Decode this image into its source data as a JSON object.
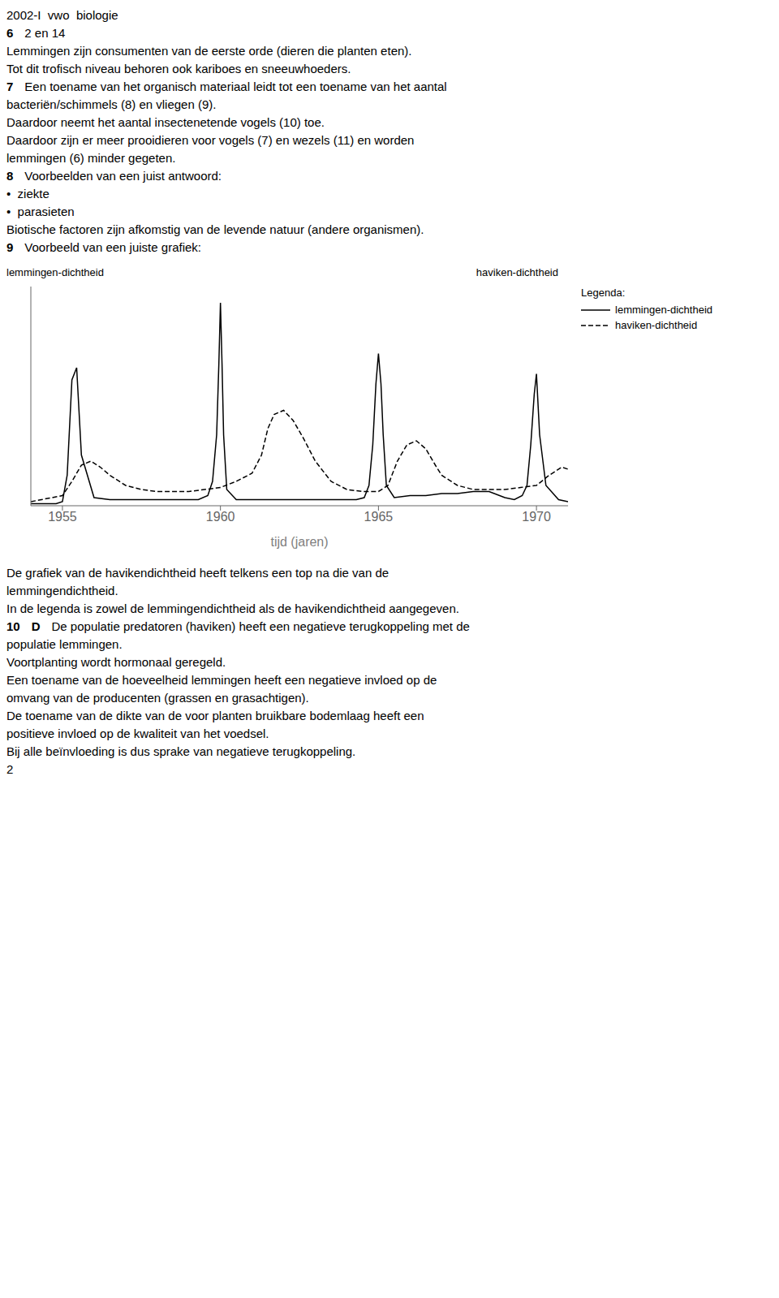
{
  "chart_data": {
    "type": "line",
    "xlabel": "tijd (jaren)",
    "ylabel": "lemmingen-dichtheid",
    "y2label": "haviken-dichtheid",
    "xlim": [
      1954,
      1971
    ],
    "xticks": [
      1955,
      1960,
      1965,
      1970
    ],
    "ylim": [
      0,
      1.08
    ],
    "tick_labels": "x",
    "grid": false,
    "legend": "right",
    "series": [
      {
        "name": "lemmingen-dichtheid",
        "color": "#000000",
        "line_style": "solid",
        "x": [
          1954.0,
          1954.8,
          1955.0,
          1955.15,
          1955.3,
          1955.45,
          1955.6,
          1956.0,
          1956.5,
          1957.0,
          1957.5,
          1958.0,
          1958.5,
          1959.0,
          1959.3,
          1959.6,
          1959.75,
          1959.88,
          1959.95,
          1960.0,
          1960.05,
          1960.1,
          1960.2,
          1960.5,
          1961.0,
          1961.5,
          1962.0,
          1962.5,
          1963.0,
          1963.5,
          1964.0,
          1964.3,
          1964.55,
          1964.7,
          1964.82,
          1964.92,
          1965.0,
          1965.08,
          1965.15,
          1965.25,
          1965.5,
          1966.0,
          1966.5,
          1967.0,
          1967.5,
          1968.0,
          1968.5,
          1969.0,
          1969.3,
          1969.55,
          1969.7,
          1969.82,
          1969.93,
          1970.0,
          1970.1,
          1970.3,
          1970.7,
          1971.0
        ],
        "values": [
          0.01,
          0.01,
          0.02,
          0.15,
          0.62,
          0.68,
          0.25,
          0.04,
          0.03,
          0.03,
          0.03,
          0.03,
          0.03,
          0.03,
          0.03,
          0.05,
          0.12,
          0.35,
          0.7,
          1.0,
          0.7,
          0.35,
          0.08,
          0.03,
          0.03,
          0.03,
          0.03,
          0.03,
          0.03,
          0.03,
          0.03,
          0.03,
          0.04,
          0.1,
          0.3,
          0.6,
          0.75,
          0.6,
          0.35,
          0.1,
          0.04,
          0.05,
          0.05,
          0.06,
          0.06,
          0.07,
          0.07,
          0.04,
          0.03,
          0.05,
          0.1,
          0.3,
          0.55,
          0.65,
          0.35,
          0.1,
          0.03,
          0.02
        ]
      },
      {
        "name": "haviken-dichtheid",
        "color": "#000000",
        "line_style": "dashed",
        "x": [
          1954.0,
          1955.0,
          1955.3,
          1955.6,
          1955.9,
          1956.2,
          1956.5,
          1957.0,
          1957.5,
          1958.0,
          1958.5,
          1959.0,
          1959.5,
          1960.0,
          1960.5,
          1961.0,
          1961.3,
          1961.5,
          1961.7,
          1962.0,
          1962.3,
          1962.6,
          1963.0,
          1963.5,
          1964.0,
          1964.5,
          1965.0,
          1965.3,
          1965.6,
          1965.9,
          1966.2,
          1966.5,
          1966.8,
          1967.0,
          1967.5,
          1968.0,
          1968.5,
          1969.0,
          1969.5,
          1970.0,
          1970.4,
          1970.8,
          1971.0
        ],
        "values": [
          0.02,
          0.05,
          0.12,
          0.2,
          0.22,
          0.19,
          0.15,
          0.1,
          0.08,
          0.07,
          0.07,
          0.07,
          0.08,
          0.09,
          0.12,
          0.16,
          0.25,
          0.38,
          0.45,
          0.47,
          0.42,
          0.34,
          0.22,
          0.12,
          0.08,
          0.07,
          0.07,
          0.1,
          0.22,
          0.3,
          0.32,
          0.28,
          0.2,
          0.15,
          0.1,
          0.08,
          0.08,
          0.08,
          0.09,
          0.1,
          0.15,
          0.19,
          0.18
        ]
      }
    ],
    "annotations": [
      [
        "2002-I  vwo  biologie"
      ],
      [
        "6",
        "2 en 14"
      ],
      [
        "Lemmingen zijn consumenten van de eerste orde (dieren die planten eten)."
      ],
      [
        "Tot dit trofisch niveau behoren ook kariboes en sneeuwhoeders."
      ],
      [
        "7",
        "Een toename van het organisch materiaal leidt tot een toename van het aantal"
      ],
      [
        "bacteriën/schimmels (8) en vliegen (9)."
      ],
      [
        "Daardoor neemt het aantal insectenetende vogels (10) toe."
      ],
      [
        "Daardoor zijn er meer prooidieren voor vogels (7) en wezels (11) en worden"
      ],
      [
        "lemmingen (6) minder gegeten."
      ],
      [
        "8",
        "Voorbeelden van een juist antwoord:"
      ],
      [
        "•  ziekte"
      ],
      [
        "•  parasieten"
      ],
      [
        "Biotische factoren zijn afkomstig van de levende natuur (andere organismen)."
      ],
      [
        "9",
        "Voorbeeld van een juiste grafiek:"
      ],
      [
        "Legenda:"
      ],
      [
        "De grafiek van de havikendichtheid heeft telkens een top na die van de"
      ],
      [
        "lemmingendichtheid."
      ],
      [
        "In de legenda is zowel de lemmingendichtheid als de havikendichtheid aangegeven."
      ],
      [
        "10",
        "D",
        "De populatie predatoren (haviken) heeft een negatieve terugkoppeling met de"
      ],
      [
        "populatie lemmingen."
      ],
      [
        "Voortplanting wordt hormonaal geregeld."
      ],
      [
        "Een toename van de hoeveelheid lemmingen heeft een negatieve invloed op de"
      ],
      [
        "omvang van de producenten (grassen en grasachtigen)."
      ],
      [
        "De toename van de dikte van de voor planten bruikbare bodemlaag heeft een"
      ],
      [
        "positieve invloed op de kwaliteit van het voedsel."
      ],
      [
        "Bij alle beïnvloeding is dus sprake van negatieve terugkoppeling."
      ],
      [
        "2"
      ]
    ]
  }
}
